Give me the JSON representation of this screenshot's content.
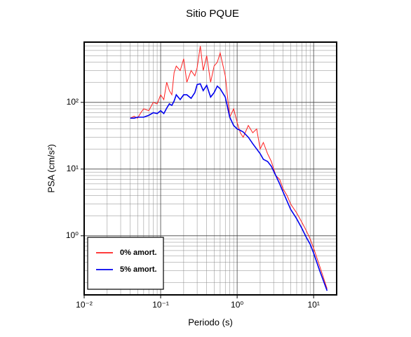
{
  "chart_data": {
    "type": "line",
    "title": "Sitio PQUE",
    "x_label": "Periodo (s)",
    "y_label": "PSA (cm/s²)",
    "log_x": true,
    "log_y": true,
    "grid": true,
    "legend_position": "lower left",
    "xlim": [
      0.01,
      20
    ],
    "ylim": [
      0.13,
      800
    ],
    "xticks": [
      {
        "value": 0.01,
        "label": "10⁻²"
      },
      {
        "value": 0.1,
        "label": "10⁻¹"
      },
      {
        "value": 1,
        "label": "10⁰"
      },
      {
        "value": 10,
        "label": "10¹"
      }
    ],
    "yticks": [
      {
        "value": 1,
        "label": "10⁰"
      },
      {
        "value": 10,
        "label": "10¹"
      },
      {
        "value": 100,
        "label": "10²"
      }
    ],
    "xminorticks": [
      0.02,
      0.03,
      0.04,
      0.05,
      0.06,
      0.07,
      0.08,
      0.09,
      0.2,
      0.3,
      0.4,
      0.5,
      0.6,
      0.7,
      0.8,
      0.9,
      2,
      3,
      4,
      5,
      6,
      7,
      8,
      9
    ],
    "yminorticks": [
      0.2,
      0.3,
      0.4,
      0.5,
      0.6,
      0.7,
      0.8,
      0.9,
      2,
      3,
      4,
      5,
      6,
      7,
      8,
      9,
      20,
      30,
      40,
      50,
      60,
      70,
      80,
      90,
      200,
      300,
      400,
      500,
      600,
      700
    ],
    "x": [
      0.04,
      0.045,
      0.05,
      0.055,
      0.06,
      0.07,
      0.08,
      0.09,
      0.1,
      0.11,
      0.12,
      0.13,
      0.14,
      0.15,
      0.16,
      0.18,
      0.2,
      0.22,
      0.25,
      0.28,
      0.3,
      0.33,
      0.36,
      0.4,
      0.45,
      0.5,
      0.55,
      0.6,
      0.7,
      0.8,
      0.9,
      1.0,
      1.1,
      1.2,
      1.4,
      1.6,
      1.8,
      2.0,
      2.2,
      2.5,
      2.8,
      3.2,
      3.6,
      4,
      4.5,
      5,
      6,
      7,
      8,
      9,
      10,
      12,
      15
    ],
    "series": [
      {
        "name": "0% amort.",
        "color": "#ff2020",
        "width": 1,
        "values": [
          58,
          62,
          58,
          70,
          80,
          75,
          100,
          95,
          130,
          110,
          200,
          150,
          130,
          280,
          350,
          300,
          450,
          200,
          300,
          250,
          330,
          700,
          300,
          500,
          200,
          350,
          400,
          550,
          250,
          60,
          80,
          50,
          35,
          30,
          45,
          35,
          40,
          20,
          25,
          17,
          13,
          8,
          7,
          5,
          4,
          3,
          2.2,
          1.6,
          1.2,
          0.9,
          0.65,
          0.35,
          0.16
        ]
      },
      {
        "name": "5% amort.",
        "color": "#0000ee",
        "width": 1.6,
        "values": [
          58,
          58,
          60,
          60,
          60,
          64,
          70,
          68,
          75,
          68,
          82,
          95,
          90,
          105,
          130,
          110,
          130,
          130,
          115,
          140,
          185,
          190,
          150,
          180,
          120,
          140,
          175,
          160,
          120,
          60,
          45,
          40,
          38,
          36,
          30,
          24,
          20,
          17,
          14,
          13,
          11,
          8,
          6,
          4.5,
          3.3,
          2.5,
          1.8,
          1.3,
          0.95,
          0.75,
          0.55,
          0.3,
          0.15
        ]
      }
    ]
  }
}
